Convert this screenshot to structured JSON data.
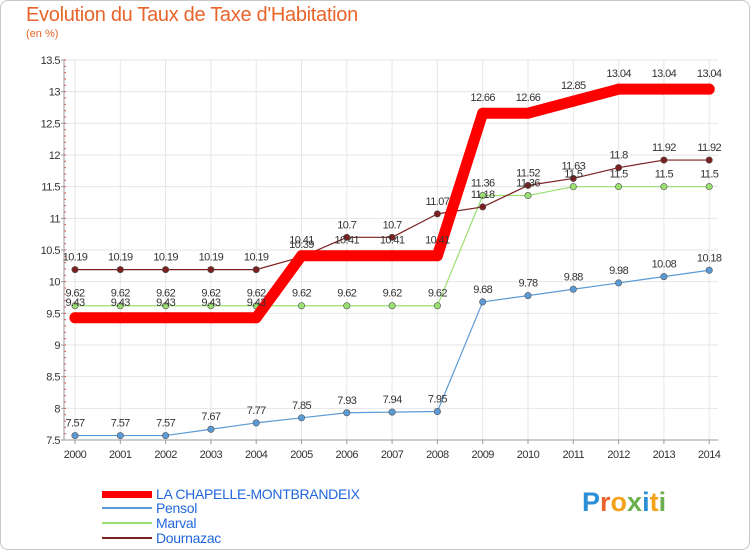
{
  "header": {
    "title": "Evolution du Taux de Taxe d'Habitation",
    "unit": "(en %)"
  },
  "logo": {
    "text": "Proxiti",
    "letter_colors": [
      "#2b8fd6",
      "#e8642b",
      "#f2a21b",
      "#6ab04c",
      "#2b8fd6",
      "#f2a21b",
      "#6ab04c"
    ]
  },
  "chart_data": {
    "type": "line",
    "title": "Evolution du Taux de Taxe d'Habitation",
    "ylabel": "(en %)",
    "xlabel": "",
    "x": [
      "2000",
      "2001",
      "2002",
      "2003",
      "2004",
      "2005",
      "2006",
      "2007",
      "2008",
      "2009",
      "2010",
      "2011",
      "2012",
      "2013",
      "2014"
    ],
    "ylim": [
      7.5,
      13.5
    ],
    "yticks": [
      "7.5",
      "8",
      "8.5",
      "9",
      "9.5",
      "10",
      "10.5",
      "11",
      "11.5",
      "12",
      "12.5",
      "13",
      "13.5"
    ],
    "grid": true,
    "legend_position": "bottom-left",
    "series": [
      {
        "name": "LA CHAPELLE-MONTBRANDEIX",
        "color": "#ff0000",
        "values": [
          9.43,
          9.43,
          9.43,
          9.43,
          9.43,
          10.41,
          10.41,
          10.41,
          10.41,
          12.66,
          12.66,
          12.85,
          13.04,
          13.04,
          13.04
        ],
        "labels": [
          "9.43",
          "9.43",
          "9.43",
          "9.43",
          "9.43",
          "10.41",
          "10.41",
          "10.41",
          "10.41",
          "12.66",
          "12.66",
          "12.85",
          "13.04",
          "13.04",
          "13.04"
        ]
      },
      {
        "name": "Pensol",
        "color": "#5b9bd5",
        "values": [
          7.57,
          7.57,
          7.57,
          7.67,
          7.77,
          7.85,
          7.93,
          7.94,
          7.95,
          9.68,
          9.78,
          9.88,
          9.98,
          10.08,
          10.18
        ],
        "labels": [
          "7.57",
          "7.57",
          "7.57",
          "7.67",
          "7.77",
          "7.85",
          "7.93",
          "7.94",
          "7.95",
          "9.68",
          "9.78",
          "9.88",
          "9.98",
          "10.08",
          "10.18"
        ]
      },
      {
        "name": "Marval",
        "color": "#99e070",
        "values": [
          9.62,
          9.62,
          9.62,
          9.62,
          9.62,
          9.62,
          9.62,
          9.62,
          9.62,
          11.36,
          11.36,
          11.5,
          11.5,
          11.5,
          11.5
        ],
        "labels": [
          "9.62",
          "9.62",
          "9.62",
          "9.62",
          "9.62",
          "9.62",
          "9.62",
          "9.62",
          "9.62",
          "11.36",
          "11.36",
          "11.5",
          "11.5",
          "11.5",
          "11.5"
        ]
      },
      {
        "name": "Dournazac",
        "color": "#7b2020",
        "values": [
          10.19,
          10.19,
          10.19,
          10.19,
          10.19,
          10.39,
          10.7,
          10.7,
          11.07,
          11.18,
          11.52,
          11.63,
          11.8,
          11.92,
          11.92
        ],
        "labels": [
          "10.19",
          "10.19",
          "10.19",
          "10.19",
          "10.19",
          "10.39",
          "10.7",
          "10.7",
          "11.07",
          "11.18",
          "11.52",
          "11.63",
          "11.8",
          "11.92",
          "11.92"
        ]
      }
    ]
  }
}
